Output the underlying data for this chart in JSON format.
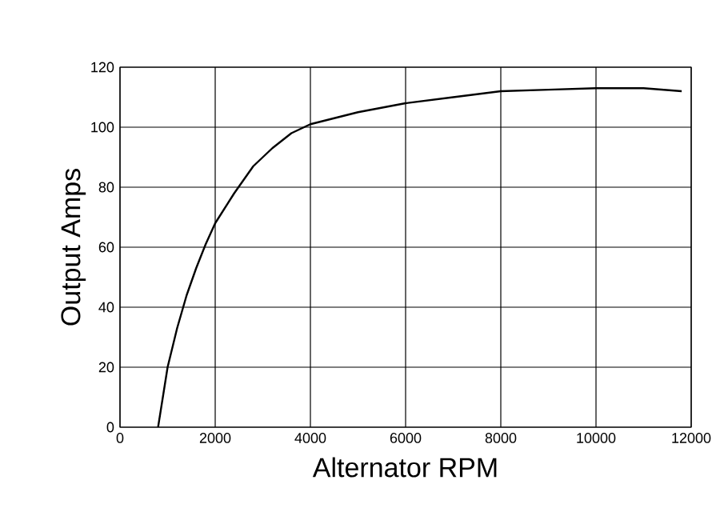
{
  "chart_data": {
    "type": "line",
    "xlabel": "Alternator RPM",
    "ylabel": "Output Amps",
    "series": [
      {
        "color": "#000000",
        "x": [
          800,
          900,
          1000,
          1200,
          1400,
          1600,
          1800,
          2000,
          2400,
          2800,
          3200,
          3600,
          4000,
          5000,
          6000,
          7000,
          8000,
          9000,
          10000,
          11000,
          11800
        ],
        "values": [
          0,
          10,
          20,
          33,
          44,
          53,
          61,
          68,
          78,
          87,
          93,
          98,
          101,
          105,
          108,
          110,
          112,
          112.5,
          113,
          113,
          112
        ]
      }
    ],
    "xlim": [
      0,
      12000
    ],
    "ylim": [
      0,
      120
    ],
    "xticks": [
      0,
      2000,
      4000,
      6000,
      8000,
      10000,
      12000
    ],
    "yticks": [
      0,
      20,
      40,
      60,
      80,
      100,
      120
    ],
    "grid": true
  }
}
